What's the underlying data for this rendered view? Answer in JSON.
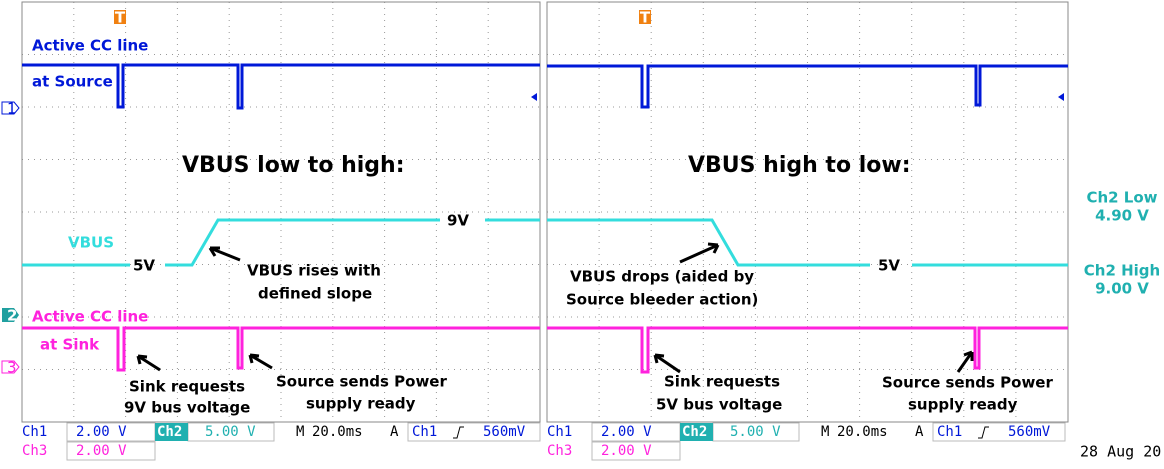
{
  "left": {
    "cc_source": [
      "Active CC line",
      "at Source"
    ],
    "heading": "VBUS low to high:",
    "vbus": "VBUS",
    "low_label": "5V",
    "high_label": "9V",
    "slope_note": [
      "VBUS rises with",
      "defined slope"
    ],
    "cc_sink": [
      "Active CC line",
      "at Sink"
    ],
    "sink_note": [
      "Sink requests",
      "9V bus voltage"
    ],
    "source_note": [
      "Source sends Power",
      "supply ready"
    ]
  },
  "right": {
    "heading": "VBUS high to low:",
    "low_label": "5V",
    "drop_note": [
      "VBUS drops (aided by",
      "Source bleeder action)"
    ],
    "sink_note": [
      "Sink requests",
      "5V bus voltage"
    ],
    "source_note": [
      "Source sends Power",
      "supply ready"
    ]
  },
  "markers": {
    "trigger": "T",
    "ch1": "1",
    "ch2": "2",
    "ch3": "3"
  },
  "measurements": {
    "low_title": "Ch2 Low",
    "low_value": "4.90 V",
    "high_title": "Ch2 High",
    "high_value": "9.00 V"
  },
  "status": {
    "ch1": "Ch1",
    "ch1_scale": "2.00 V",
    "ch2": "Ch2",
    "ch2_scale": "5.00 V",
    "m": "M",
    "timebase": "20.0ms",
    "a": "A",
    "trig_src": "Ch1",
    "trig_level": "560mV",
    "ch3": "Ch3",
    "ch3_scale": "2.00 V",
    "date": "28 Aug 20"
  }
}
